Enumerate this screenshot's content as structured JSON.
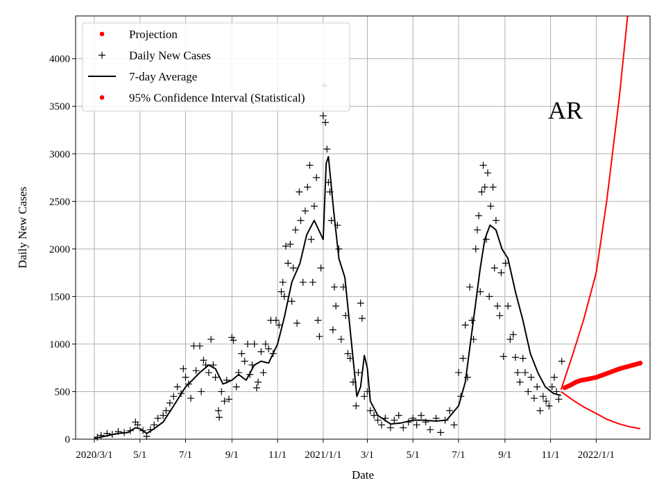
{
  "chart_data": {
    "type": "line",
    "title": "",
    "annotation": "AR",
    "xlabel": "Date",
    "ylabel": "Daily New Cases",
    "x_tick_labels": [
      "2020/3/1",
      "5/1",
      "7/1",
      "9/1",
      "11/1",
      "2021/1/1",
      "3/1",
      "5/1",
      "7/1",
      "9/1",
      "11/1",
      "2022/1/1"
    ],
    "x_tick_dates": [
      "2020-03-01",
      "2020-05-01",
      "2020-07-01",
      "2020-09-01",
      "2020-11-01",
      "2021-01-01",
      "2021-03-01",
      "2021-05-01",
      "2021-07-01",
      "2021-09-01",
      "2021-11-01",
      "2022-01-01"
    ],
    "xlim": [
      "2020-02-05",
      "2022-03-14"
    ],
    "y_ticks": [
      0,
      500,
      1000,
      1500,
      2000,
      2500,
      3000,
      3500,
      4000
    ],
    "y_tick_labels": [
      "0",
      "500",
      "1000",
      "1500",
      "2000",
      "2500",
      "3000",
      "3500",
      "4000"
    ],
    "ylim": [
      0,
      4450
    ],
    "grid": true,
    "legend_position": "top-left",
    "legend": [
      {
        "label": "Projection",
        "marker": "dot",
        "color": "#ff0000"
      },
      {
        "label": "Daily New Cases",
        "marker": "plus",
        "color": "#000000"
      },
      {
        "label": "7-day Average",
        "marker": "line",
        "color": "#000000"
      },
      {
        "label": "95% Confidence Interval (Statistical)",
        "marker": "dot",
        "color": "#ff0000"
      }
    ],
    "series": [
      {
        "name": "7-day Average",
        "color": "#000000",
        "points": [
          [
            "2020-03-01",
            10
          ],
          [
            "2020-03-15",
            30
          ],
          [
            "2020-04-01",
            60
          ],
          [
            "2020-04-15",
            70
          ],
          [
            "2020-04-25",
            120
          ],
          [
            "2020-05-01",
            110
          ],
          [
            "2020-05-10",
            60
          ],
          [
            "2020-05-20",
            110
          ],
          [
            "2020-06-01",
            180
          ],
          [
            "2020-06-15",
            350
          ],
          [
            "2020-07-01",
            550
          ],
          [
            "2020-07-10",
            620
          ],
          [
            "2020-07-20",
            700
          ],
          [
            "2020-08-01",
            780
          ],
          [
            "2020-08-10",
            740
          ],
          [
            "2020-08-20",
            580
          ],
          [
            "2020-09-01",
            620
          ],
          [
            "2020-09-10",
            680
          ],
          [
            "2020-09-20",
            620
          ],
          [
            "2020-10-01",
            780
          ],
          [
            "2020-10-10",
            820
          ],
          [
            "2020-10-20",
            800
          ],
          [
            "2020-11-01",
            1000
          ],
          [
            "2020-11-10",
            1280
          ],
          [
            "2020-11-20",
            1650
          ],
          [
            "2020-12-01",
            1850
          ],
          [
            "2020-12-10",
            2150
          ],
          [
            "2020-12-20",
            2300
          ],
          [
            "2021-01-01",
            2100
          ],
          [
            "2021-01-05",
            2900
          ],
          [
            "2021-01-08",
            2970
          ],
          [
            "2021-01-15",
            2400
          ],
          [
            "2021-01-22",
            1900
          ],
          [
            "2021-01-30",
            1700
          ],
          [
            "2021-02-08",
            1000
          ],
          [
            "2021-02-15",
            450
          ],
          [
            "2021-02-20",
            550
          ],
          [
            "2021-02-25",
            880
          ],
          [
            "2021-03-01",
            750
          ],
          [
            "2021-03-05",
            400
          ],
          [
            "2021-03-15",
            250
          ],
          [
            "2021-04-01",
            160
          ],
          [
            "2021-04-15",
            170
          ],
          [
            "2021-05-01",
            200
          ],
          [
            "2021-05-15",
            200
          ],
          [
            "2021-06-01",
            190
          ],
          [
            "2021-06-15",
            200
          ],
          [
            "2021-07-01",
            350
          ],
          [
            "2021-07-10",
            600
          ],
          [
            "2021-07-20",
            1200
          ],
          [
            "2021-07-30",
            1800
          ],
          [
            "2021-08-05",
            2100
          ],
          [
            "2021-08-12",
            2250
          ],
          [
            "2021-08-20",
            2200
          ],
          [
            "2021-08-28",
            2000
          ],
          [
            "2021-09-05",
            1900
          ],
          [
            "2021-09-15",
            1550
          ],
          [
            "2021-09-25",
            1250
          ],
          [
            "2021-10-05",
            900
          ],
          [
            "2021-10-15",
            700
          ],
          [
            "2021-10-25",
            550
          ],
          [
            "2021-11-05",
            480
          ],
          [
            "2021-11-15",
            460
          ]
        ]
      },
      {
        "name": "Projection",
        "color": "#ff0000",
        "points": [
          [
            "2021-11-20",
            540
          ],
          [
            "2021-11-28",
            570
          ],
          [
            "2021-12-05",
            600
          ],
          [
            "2021-12-12",
            620
          ],
          [
            "2021-12-20",
            630
          ],
          [
            "2022-01-01",
            650
          ],
          [
            "2022-01-15",
            690
          ],
          [
            "2022-02-01",
            740
          ],
          [
            "2022-02-15",
            770
          ],
          [
            "2022-03-01",
            800
          ]
        ]
      },
      {
        "name": "95% Confidence Interval (Statistical)",
        "color": "#ff0000",
        "upper": [
          [
            "2021-11-15",
            520
          ],
          [
            "2021-12-01",
            900
          ],
          [
            "2021-12-15",
            1250
          ],
          [
            "2022-01-01",
            1750
          ],
          [
            "2022-01-15",
            2500
          ],
          [
            "2022-02-01",
            3600
          ],
          [
            "2022-02-12",
            4450
          ]
        ],
        "lower": [
          [
            "2021-11-15",
            500
          ],
          [
            "2021-12-01",
            410
          ],
          [
            "2021-12-15",
            340
          ],
          [
            "2022-01-01",
            270
          ],
          [
            "2022-01-15",
            210
          ],
          [
            "2022-02-01",
            160
          ],
          [
            "2022-02-15",
            130
          ],
          [
            "2022-03-01",
            110
          ]
        ]
      },
      {
        "name": "Daily New Cases",
        "color": "#000000",
        "points": [
          [
            "2020-03-05",
            20
          ],
          [
            "2020-03-10",
            40
          ],
          [
            "2020-03-18",
            60
          ],
          [
            "2020-03-25",
            50
          ],
          [
            "2020-04-02",
            80
          ],
          [
            "2020-04-10",
            70
          ],
          [
            "2020-04-18",
            90
          ],
          [
            "2020-04-25",
            180
          ],
          [
            "2020-04-28",
            150
          ],
          [
            "2020-05-05",
            90
          ],
          [
            "2020-05-10",
            30
          ],
          [
            "2020-05-15",
            100
          ],
          [
            "2020-05-20",
            150
          ],
          [
            "2020-05-25",
            220
          ],
          [
            "2020-06-01",
            250
          ],
          [
            "2020-06-05",
            300
          ],
          [
            "2020-06-10",
            380
          ],
          [
            "2020-06-15",
            450
          ],
          [
            "2020-06-20",
            550
          ],
          [
            "2020-06-25",
            480
          ],
          [
            "2020-06-28",
            740
          ],
          [
            "2020-07-01",
            650
          ],
          [
            "2020-07-05",
            580
          ],
          [
            "2020-07-08",
            430
          ],
          [
            "2020-07-12",
            980
          ],
          [
            "2020-07-15",
            720
          ],
          [
            "2020-07-20",
            980
          ],
          [
            "2020-07-22",
            500
          ],
          [
            "2020-07-25",
            830
          ],
          [
            "2020-07-28",
            780
          ],
          [
            "2020-08-01",
            700
          ],
          [
            "2020-08-04",
            1050
          ],
          [
            "2020-08-07",
            780
          ],
          [
            "2020-08-10",
            650
          ],
          [
            "2020-08-14",
            300
          ],
          [
            "2020-08-15",
            230
          ],
          [
            "2020-08-18",
            500
          ],
          [
            "2020-08-22",
            400
          ],
          [
            "2020-08-25",
            620
          ],
          [
            "2020-08-28",
            420
          ],
          [
            "2020-09-01",
            1070
          ],
          [
            "2020-09-03",
            1040
          ],
          [
            "2020-09-07",
            550
          ],
          [
            "2020-09-10",
            700
          ],
          [
            "2020-09-14",
            900
          ],
          [
            "2020-09-18",
            820
          ],
          [
            "2020-09-22",
            1000
          ],
          [
            "2020-09-25",
            680
          ],
          [
            "2020-09-28",
            780
          ],
          [
            "2020-10-01",
            1000
          ],
          [
            "2020-10-04",
            540
          ],
          [
            "2020-10-06",
            600
          ],
          [
            "2020-10-10",
            920
          ],
          [
            "2020-10-13",
            700
          ],
          [
            "2020-10-16",
            1000
          ],
          [
            "2020-10-20",
            950
          ],
          [
            "2020-10-23",
            1250
          ],
          [
            "2020-10-26",
            900
          ],
          [
            "2020-10-30",
            1250
          ],
          [
            "2020-11-03",
            1200
          ],
          [
            "2020-11-06",
            1550
          ],
          [
            "2020-11-08",
            1650
          ],
          [
            "2020-11-10",
            1500
          ],
          [
            "2020-11-12",
            2030
          ],
          [
            "2020-11-15",
            1850
          ],
          [
            "2020-11-18",
            2050
          ],
          [
            "2020-11-20",
            1450
          ],
          [
            "2020-11-22",
            1800
          ],
          [
            "2020-11-25",
            2200
          ],
          [
            "2020-11-27",
            1220
          ],
          [
            "2020-11-30",
            2600
          ],
          [
            "2020-12-02",
            2300
          ],
          [
            "2020-12-05",
            1650
          ],
          [
            "2020-12-08",
            2400
          ],
          [
            "2020-12-11",
            2650
          ],
          [
            "2020-12-14",
            2880
          ],
          [
            "2020-12-16",
            2100
          ],
          [
            "2020-12-18",
            1650
          ],
          [
            "2020-12-20",
            2450
          ],
          [
            "2020-12-23",
            2750
          ],
          [
            "2020-12-25",
            1250
          ],
          [
            "2020-12-27",
            1080
          ],
          [
            "2020-12-29",
            1800
          ],
          [
            "2021-01-01",
            3400
          ],
          [
            "2021-01-03",
            3720
          ],
          [
            "2021-01-04",
            3330
          ],
          [
            "2021-01-06",
            3050
          ],
          [
            "2021-01-08",
            2700
          ],
          [
            "2021-01-10",
            2600
          ],
          [
            "2021-01-12",
            2300
          ],
          [
            "2021-01-14",
            1150
          ],
          [
            "2021-01-16",
            1600
          ],
          [
            "2021-01-18",
            1400
          ],
          [
            "2021-01-20",
            2250
          ],
          [
            "2021-01-22",
            2000
          ],
          [
            "2021-01-25",
            1050
          ],
          [
            "2021-01-28",
            1600
          ],
          [
            "2021-01-31",
            1300
          ],
          [
            "2021-02-03",
            900
          ],
          [
            "2021-02-06",
            850
          ],
          [
            "2021-02-10",
            600
          ],
          [
            "2021-02-14",
            350
          ],
          [
            "2021-02-17",
            700
          ],
          [
            "2021-02-20",
            1430
          ],
          [
            "2021-02-22",
            1270
          ],
          [
            "2021-02-25",
            450
          ],
          [
            "2021-03-01",
            500
          ],
          [
            "2021-03-05",
            300
          ],
          [
            "2021-03-10",
            250
          ],
          [
            "2021-03-15",
            200
          ],
          [
            "2021-03-20",
            150
          ],
          [
            "2021-03-25",
            220
          ],
          [
            "2021-04-01",
            120
          ],
          [
            "2021-04-06",
            200
          ],
          [
            "2021-04-12",
            250
          ],
          [
            "2021-04-18",
            120
          ],
          [
            "2021-04-25",
            180
          ],
          [
            "2021-05-01",
            220
          ],
          [
            "2021-05-06",
            150
          ],
          [
            "2021-05-12",
            250
          ],
          [
            "2021-05-18",
            180
          ],
          [
            "2021-05-24",
            100
          ],
          [
            "2021-06-01",
            220
          ],
          [
            "2021-06-07",
            70
          ],
          [
            "2021-06-13",
            200
          ],
          [
            "2021-06-19",
            300
          ],
          [
            "2021-06-25",
            150
          ],
          [
            "2021-07-01",
            700
          ],
          [
            "2021-07-04",
            450
          ],
          [
            "2021-07-07",
            850
          ],
          [
            "2021-07-10",
            1200
          ],
          [
            "2021-07-13",
            650
          ],
          [
            "2021-07-16",
            1600
          ],
          [
            "2021-07-19",
            1250
          ],
          [
            "2021-07-21",
            1050
          ],
          [
            "2021-07-24",
            2000
          ],
          [
            "2021-07-26",
            2200
          ],
          [
            "2021-07-28",
            2350
          ],
          [
            "2021-07-30",
            1550
          ],
          [
            "2021-08-01",
            2600
          ],
          [
            "2021-08-03",
            2880
          ],
          [
            "2021-08-05",
            2650
          ],
          [
            "2021-08-07",
            2100
          ],
          [
            "2021-08-09",
            2800
          ],
          [
            "2021-08-11",
            1500
          ],
          [
            "2021-08-13",
            2450
          ],
          [
            "2021-08-16",
            2650
          ],
          [
            "2021-08-18",
            1800
          ],
          [
            "2021-08-20",
            2300
          ],
          [
            "2021-08-22",
            1400
          ],
          [
            "2021-08-25",
            1300
          ],
          [
            "2021-08-27",
            1750
          ],
          [
            "2021-08-30",
            870
          ],
          [
            "2021-09-02",
            1850
          ],
          [
            "2021-09-05",
            1400
          ],
          [
            "2021-09-08",
            1050
          ],
          [
            "2021-09-12",
            1100
          ],
          [
            "2021-09-15",
            860
          ],
          [
            "2021-09-18",
            700
          ],
          [
            "2021-09-21",
            600
          ],
          [
            "2021-09-25",
            850
          ],
          [
            "2021-09-28",
            700
          ],
          [
            "2021-10-02",
            500
          ],
          [
            "2021-10-06",
            650
          ],
          [
            "2021-10-10",
            430
          ],
          [
            "2021-10-14",
            550
          ],
          [
            "2021-10-18",
            300
          ],
          [
            "2021-10-22",
            450
          ],
          [
            "2021-10-26",
            400
          ],
          [
            "2021-10-30",
            350
          ],
          [
            "2021-11-03",
            550
          ],
          [
            "2021-11-06",
            650
          ],
          [
            "2021-11-09",
            500
          ],
          [
            "2021-11-12",
            420
          ],
          [
            "2021-11-16",
            820
          ]
        ]
      }
    ]
  }
}
